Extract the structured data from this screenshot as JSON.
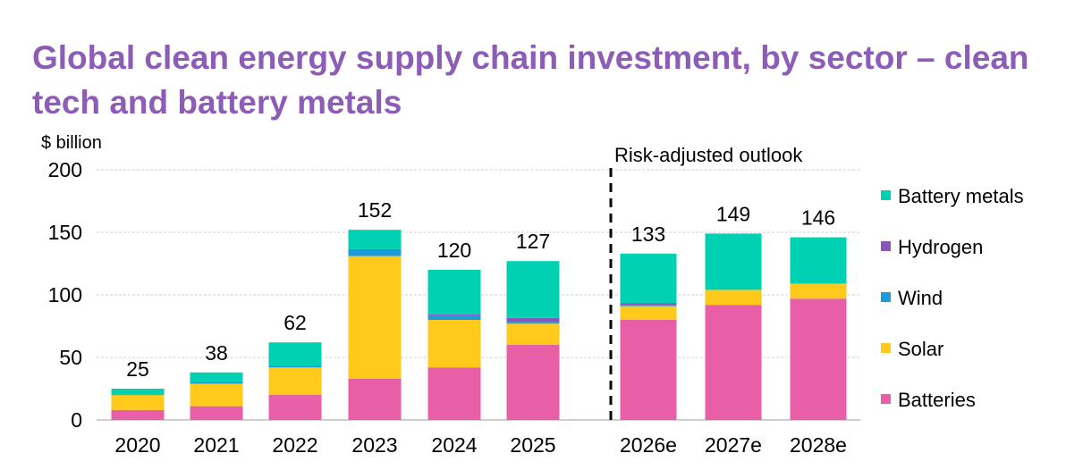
{
  "chart_data": {
    "type": "bar",
    "stacked": true,
    "title": "Global clean energy supply chain investment, by sector – clean tech and battery metals",
    "ylabel": "$ billion",
    "xlabel": "",
    "ylim": [
      0,
      200
    ],
    "yticks": [
      0,
      50,
      100,
      150,
      200
    ],
    "grid": true,
    "legend_position": "right",
    "annotation": "Risk-adjusted outlook",
    "categories": [
      "2020",
      "2021",
      "2022",
      "2023",
      "2024",
      "2025",
      "2026e",
      "2027e",
      "2028e"
    ],
    "totals": [
      25,
      38,
      62,
      152,
      120,
      127,
      133,
      149,
      146
    ],
    "series": [
      {
        "name": "Batteries",
        "color": "#e85fa8",
        "values": [
          8,
          11,
          20,
          33,
          42,
          60,
          80,
          92,
          97
        ]
      },
      {
        "name": "Solar",
        "color": "#ffca1c",
        "values": [
          12,
          18,
          22,
          98,
          38,
          17,
          11,
          12,
          12
        ]
      },
      {
        "name": "Wind",
        "color": "#1a9bdc",
        "values": [
          0.5,
          1,
          1.5,
          5,
          3,
          1.5,
          1,
          0,
          0
        ]
      },
      {
        "name": "Hydrogen",
        "color": "#8a55b8",
        "values": [
          0,
          0,
          0,
          0.5,
          1.5,
          3,
          1.5,
          0,
          0
        ]
      },
      {
        "name": "Battery metals",
        "color": "#00d1b2",
        "values": [
          4.5,
          8,
          18.5,
          15.5,
          35.5,
          45.5,
          39.5,
          45,
          37
        ]
      }
    ]
  }
}
